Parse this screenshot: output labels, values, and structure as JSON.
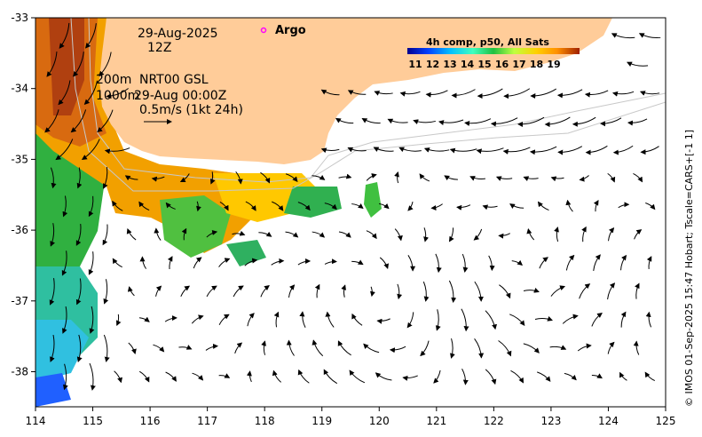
{
  "map": {
    "date": "29-Aug-2025",
    "hour": "12Z",
    "depth_top": "200m",
    "depth_bottom": "1000m",
    "product": "NRT00 GSL",
    "product_time": "29-Aug 00:00Z",
    "scale_label": "0.5m/s (1kt 24h)",
    "argo_label": "Argo",
    "credit": "© IMOS 01-Sep-2025 15:47 Hobart; Tscale=CARS+[-1 1]",
    "x_ticks": [
      "114",
      "115",
      "116",
      "117",
      "118",
      "119",
      "120",
      "121",
      "122",
      "123",
      "124",
      "125"
    ],
    "y_ticks": [
      "-33",
      "-34",
      "-35",
      "-36",
      "-37",
      "-38"
    ],
    "colors": {
      "land": "#ffcc99",
      "argo": "#ff00ff",
      "arrow": "#000000"
    }
  },
  "colorbar": {
    "title": "4h comp, p50, All Sats",
    "ticks": [
      "11",
      "12",
      "13",
      "14",
      "15",
      "16",
      "17",
      "18",
      "19"
    ],
    "colors": [
      "#00008f",
      "#0040ff",
      "#00bfff",
      "#40ffbf",
      "#20c040",
      "#bfff40",
      "#ffd000",
      "#ff9000",
      "#e05000",
      "#a02000"
    ]
  }
}
